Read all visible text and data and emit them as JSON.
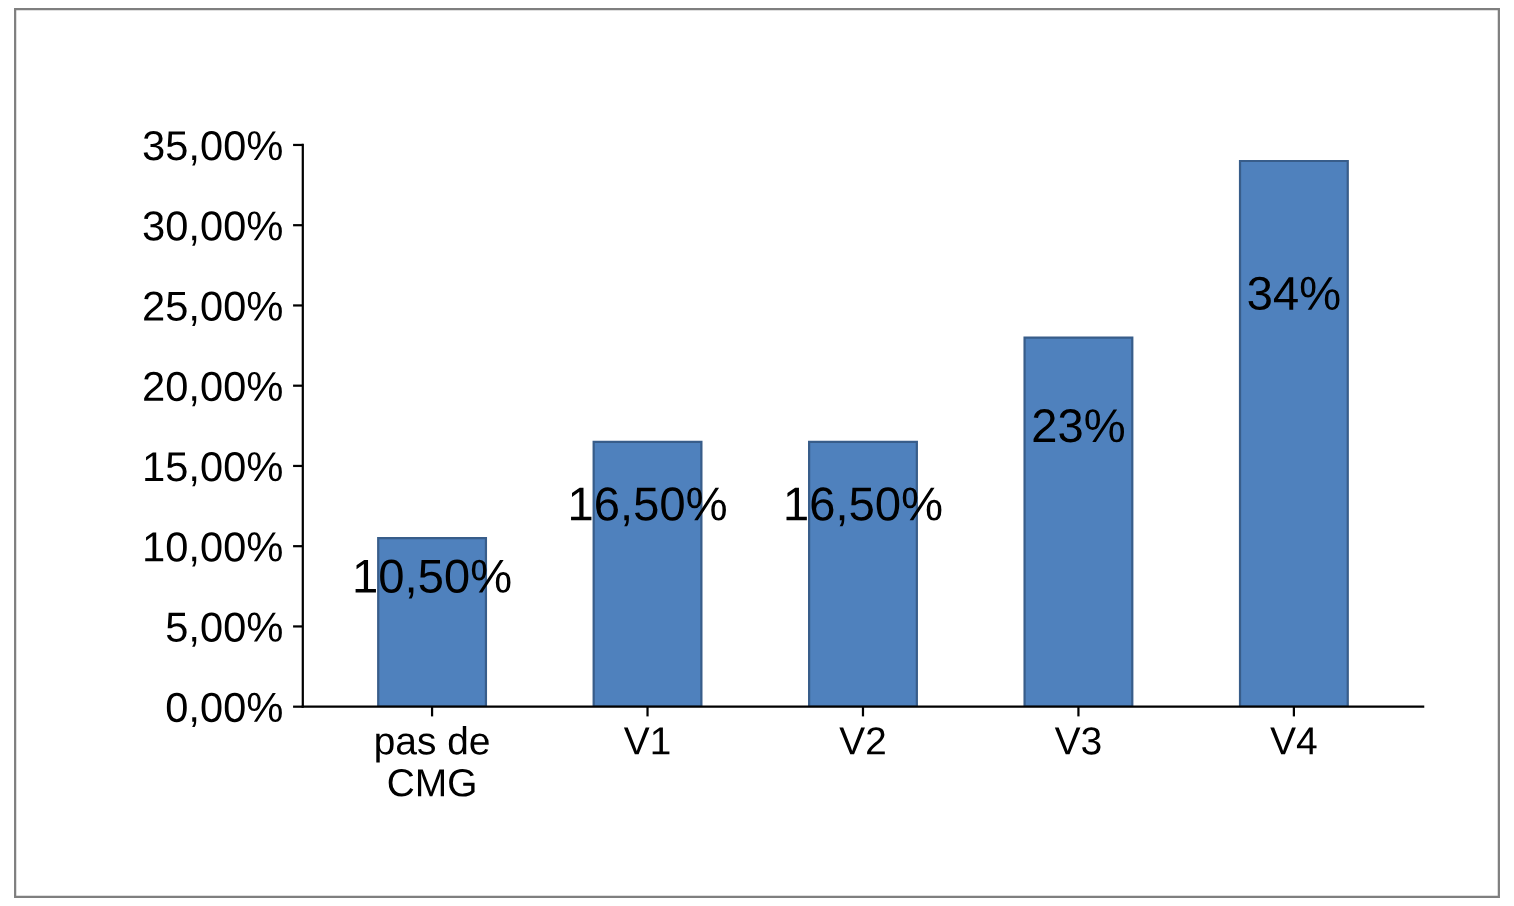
{
  "chart_data": {
    "type": "bar",
    "categories": [
      "pas de\nCMG",
      "V1",
      "V2",
      "V3",
      "V4"
    ],
    "values": [
      10.5,
      16.5,
      16.5,
      23,
      34
    ],
    "value_labels": [
      "10,50%",
      "16,50%",
      "16,50%",
      "23%",
      "34%"
    ],
    "color": "#4f81bd",
    "ylim": [
      0,
      35
    ],
    "yticks": [
      {
        "value": 0,
        "label": "0,00%"
      },
      {
        "value": 5,
        "label": "5,00%"
      },
      {
        "value": 10,
        "label": "10,00%"
      },
      {
        "value": 15,
        "label": "15,00%"
      },
      {
        "value": 20,
        "label": "20,00%"
      },
      {
        "value": 25,
        "label": "25,00%"
      },
      {
        "value": 30,
        "label": "30,00%"
      },
      {
        "value": 35,
        "label": "35,00%"
      }
    ],
    "grid": false,
    "legend": false
  }
}
